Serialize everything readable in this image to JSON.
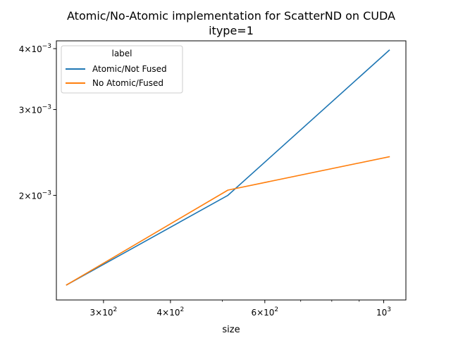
{
  "chart_data": {
    "type": "line",
    "title": "Atomic/No-Atomic implementation for ScatterND on CUDA",
    "subtitle": "itype=1",
    "xlabel": "size",
    "ylabel": "",
    "x_scale": "log",
    "y_scale": "log",
    "xlim": [
      245,
      1100
    ],
    "ylim": [
      0.00122,
      0.00415
    ],
    "x_ticks": [
      {
        "value": 300,
        "base": "3",
        "exp": "2"
      },
      {
        "value": 400,
        "base": "4",
        "exp": "2"
      },
      {
        "value": 600,
        "base": "6",
        "exp": "2"
      },
      {
        "value": 1000,
        "base": "10",
        "exp": "3",
        "plain": true
      }
    ],
    "x_minor_ticks": [
      500,
      700,
      800,
      900
    ],
    "y_ticks": [
      {
        "value": 0.002,
        "base": "2",
        "exp": "−3"
      },
      {
        "value": 0.003,
        "base": "3",
        "exp": "−3"
      },
      {
        "value": 0.004,
        "base": "4",
        "exp": "−3"
      }
    ],
    "legend": {
      "title": "label",
      "placement": "top-left"
    },
    "grid": false,
    "series": [
      {
        "name": "Atomic/Not Fused",
        "color": "#1f77b4",
        "x": [
          256,
          512,
          1024
        ],
        "y": [
          0.00131,
          0.002,
          0.00397
        ]
      },
      {
        "name": "No Atomic/Fused",
        "color": "#ff7f0e",
        "x": [
          256,
          512,
          1024
        ],
        "y": [
          0.00131,
          0.00205,
          0.0024
        ]
      }
    ]
  }
}
